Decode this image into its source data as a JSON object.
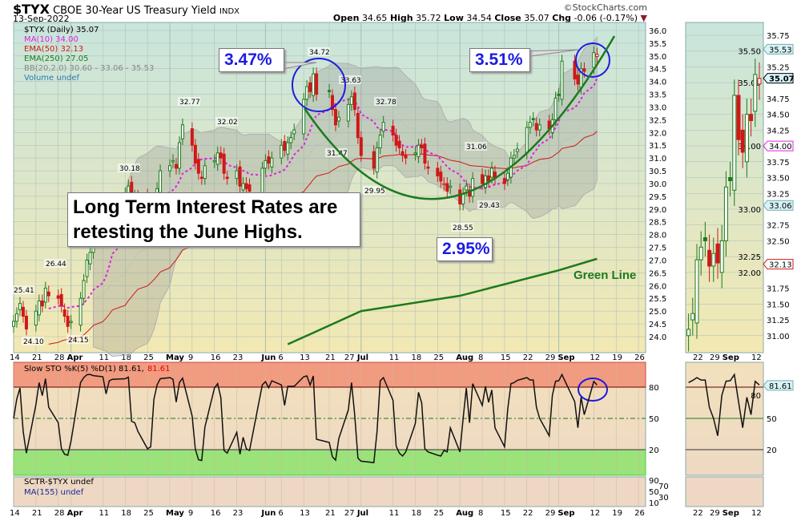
{
  "header": {
    "symbol": "$TYX",
    "name": "CBOE 30-Year US Treasury Yield",
    "exchange": "INDX",
    "date": "13-Sep-2022",
    "brand": "©StockCharts.com",
    "open_label": "Open",
    "open": "34.65",
    "high_label": "High",
    "high": "35.72",
    "low_label": "Low",
    "low": "34.54",
    "close_label": "Close",
    "close": "35.07",
    "chg_label": "Chg",
    "chg": "-0.06 (-0.17%)"
  },
  "legend": {
    "price": "$TYX (Daily) 35.07",
    "ma10": "MA(10) 34.00",
    "ema50": "EMA(50) 32.13",
    "ema250": "EMA(250) 27.05",
    "bb": "BB(20,2.0) 30.60 - 33.06 - 35.53",
    "volume": "Volume undef",
    "sto": "Slow STO %K(5) %D(1) 81.61,",
    "sto_d": "81.61",
    "sctr": "SCTR-$TYX undef",
    "ma155": "MA(155) undef"
  },
  "annotations": {
    "pct_june": "3.47%",
    "pct_sep": "3.51%",
    "pct_aug": "2.95%",
    "text": "Long Term Interest Rates are retesting the June Highs.",
    "green_line": "Green Line"
  },
  "colors": {
    "up": "#1d7a1d",
    "down": "#d01818",
    "ma10": "#e020e0",
    "ema50": "#d01818",
    "ema250": "#1d7a1d",
    "circle": "#1c1ce0",
    "overbought": "#f19b80",
    "oversold": "#9be27a",
    "bb": "#a0a0a0"
  },
  "chart_data": {
    "type": "candlestick",
    "price_axis": {
      "ylim": [
        23.7,
        36.2
      ],
      "ticks": [
        "24.0",
        "24.5",
        "25.0",
        "25.5",
        "26.0",
        "26.5",
        "27.0",
        "27.5",
        "28.0",
        "28.5",
        "29.0",
        "29.5",
        "30.0",
        "30.5",
        "31.0",
        "31.5",
        "32.0",
        "32.5",
        "33.0",
        "33.5",
        "34.0",
        "34.5",
        "35.0",
        "35.5",
        "36.0"
      ]
    },
    "date_ticks": [
      [
        "2022-03-14",
        "14"
      ],
      [
        "2022-03-21",
        "21"
      ],
      [
        "2022-03-28",
        "28"
      ],
      [
        "2022-04-01",
        "Apr"
      ],
      [
        "2022-04-11",
        "11"
      ],
      [
        "2022-04-18",
        "18"
      ],
      [
        "2022-04-25",
        "25"
      ],
      [
        "2022-05-02",
        "May"
      ],
      [
        "2022-05-09",
        "9"
      ],
      [
        "2022-05-16",
        "16"
      ],
      [
        "2022-05-23",
        "23"
      ],
      [
        "2022-06-01",
        "Jun"
      ],
      [
        "2022-06-06",
        "6"
      ],
      [
        "2022-06-13",
        "13"
      ],
      [
        "2022-06-21",
        "21"
      ],
      [
        "2022-06-27",
        "27"
      ],
      [
        "2022-07-01",
        "Jul"
      ],
      [
        "2022-07-11",
        "11"
      ],
      [
        "2022-07-18",
        "18"
      ],
      [
        "2022-07-25",
        "25"
      ],
      [
        "2022-08-01",
        "Aug"
      ],
      [
        "2022-08-08",
        "8"
      ],
      [
        "2022-08-15",
        "15"
      ],
      [
        "2022-08-22",
        "22"
      ],
      [
        "2022-08-29",
        "29"
      ],
      [
        "2022-09-01",
        "Sep"
      ],
      [
        "2022-09-12",
        "12"
      ],
      [
        "2022-09-19",
        "19"
      ],
      [
        "2022-09-26",
        "26"
      ]
    ],
    "closes": [
      [
        "03-14",
        24.6
      ],
      [
        "03-15",
        24.9
      ],
      [
        "03-16",
        25.3
      ],
      [
        "03-17",
        24.8
      ],
      [
        "03-18",
        24.3
      ],
      [
        "03-21",
        25.0
      ],
      [
        "03-22",
        25.4
      ],
      [
        "03-23",
        25.2
      ],
      [
        "03-24",
        25.9
      ],
      [
        "03-25",
        25.6
      ],
      [
        "03-28",
        25.5
      ],
      [
        "03-29",
        25.2
      ],
      [
        "03-30",
        24.8
      ],
      [
        "03-31",
        24.4
      ],
      [
        "04-01",
        24.6
      ],
      [
        "04-04",
        25.5
      ],
      [
        "04-05",
        26.2
      ],
      [
        "04-06",
        27.0
      ],
      [
        "04-07",
        27.3
      ],
      [
        "04-08",
        27.8
      ],
      [
        "04-11",
        28.2
      ],
      [
        "04-12",
        28.0
      ],
      [
        "04-13",
        28.6
      ],
      [
        "04-14",
        29.3
      ],
      [
        "04-18",
        29.6
      ],
      [
        "04-19",
        29.9
      ],
      [
        "04-20",
        29.2
      ],
      [
        "04-21",
        29.5
      ],
      [
        "04-22",
        29.4
      ],
      [
        "04-25",
        29.2
      ],
      [
        "04-26",
        28.9
      ],
      [
        "04-27",
        29.4
      ],
      [
        "04-28",
        29.8
      ],
      [
        "04-29",
        30.5
      ],
      [
        "05-02",
        30.7
      ],
      [
        "05-03",
        30.9
      ],
      [
        "05-04",
        30.6
      ],
      [
        "05-05",
        31.6
      ],
      [
        "05-06",
        32.3
      ],
      [
        "05-09",
        31.5
      ],
      [
        "05-10",
        30.8
      ],
      [
        "05-11",
        30.4
      ],
      [
        "05-12",
        30.2
      ],
      [
        "05-13",
        30.7
      ],
      [
        "05-16",
        30.9
      ],
      [
        "05-17",
        31.2
      ],
      [
        "05-18",
        31.0
      ],
      [
        "05-19",
        30.4
      ],
      [
        "05-20",
        30.2
      ],
      [
        "05-23",
        30.5
      ],
      [
        "05-24",
        29.9
      ],
      [
        "05-25",
        30.0
      ],
      [
        "05-26",
        29.8
      ],
      [
        "05-27",
        29.7
      ],
      [
        "05-31",
        30.6
      ],
      [
        "06-01",
        30.9
      ],
      [
        "06-02",
        30.8
      ],
      [
        "06-03",
        31.0
      ],
      [
        "06-06",
        31.5
      ],
      [
        "06-07",
        31.3
      ],
      [
        "06-08",
        31.6
      ],
      [
        "06-09",
        31.8
      ],
      [
        "06-10",
        32.1
      ],
      [
        "06-13",
        33.3
      ],
      [
        "06-14",
        33.8
      ],
      [
        "06-15",
        33.6
      ],
      [
        "06-16",
        34.3
      ],
      [
        "06-17",
        33.5
      ],
      [
        "06-21",
        33.6
      ],
      [
        "06-22",
        32.9
      ],
      [
        "06-23",
        32.3
      ],
      [
        "06-24",
        32.6
      ],
      [
        "06-27",
        33.1
      ],
      [
        "06-28",
        33.4
      ],
      [
        "06-29",
        32.9
      ],
      [
        "06-30",
        31.8
      ],
      [
        "07-01",
        31.1
      ],
      [
        "07-05",
        30.6
      ],
      [
        "07-06",
        31.4
      ],
      [
        "07-07",
        31.9
      ],
      [
        "07-08",
        32.4
      ],
      [
        "07-11",
        31.9
      ],
      [
        "07-12",
        31.5
      ],
      [
        "07-13",
        31.4
      ],
      [
        "07-14",
        31.1
      ],
      [
        "07-15",
        31.0
      ],
      [
        "07-18",
        31.2
      ],
      [
        "07-19",
        31.5
      ],
      [
        "07-20",
        31.4
      ],
      [
        "07-21",
        30.8
      ],
      [
        "07-22",
        30.6
      ],
      [
        "07-25",
        30.3
      ],
      [
        "07-26",
        30.1
      ],
      [
        "07-27",
        30.0
      ],
      [
        "07-28",
        29.7
      ],
      [
        "07-29",
        29.9
      ],
      [
        "08-01",
        29.2
      ],
      [
        "08-02",
        29.6
      ],
      [
        "08-03",
        29.9
      ],
      [
        "08-04",
        29.5
      ],
      [
        "08-05",
        30.2
      ],
      [
        "08-08",
        30.0
      ],
      [
        "08-09",
        30.3
      ],
      [
        "08-10",
        30.1
      ],
      [
        "08-11",
        30.6
      ],
      [
        "08-12",
        30.2
      ],
      [
        "08-15",
        30.0
      ],
      [
        "08-16",
        30.4
      ],
      [
        "08-17",
        31.0
      ],
      [
        "08-18",
        31.1
      ],
      [
        "08-19",
        31.35
      ],
      [
        "08-22",
        32.2
      ],
      [
        "08-23",
        32.4
      ],
      [
        "08-24",
        32.5
      ],
      [
        "08-25",
        32.1
      ],
      [
        "08-26",
        32.3
      ],
      [
        "08-29",
        32.15
      ],
      [
        "08-30",
        32.5
      ],
      [
        "08-31",
        33.35
      ],
      [
        "09-01",
        33.45
      ],
      [
        "09-02",
        34.8
      ],
      [
        "09-06",
        34.1
      ],
      [
        "09-07",
        33.9
      ],
      [
        "09-08",
        34.5
      ],
      [
        "09-09",
        34.4
      ],
      [
        "09-12",
        35.13
      ],
      [
        "09-13",
        35.07
      ]
    ],
    "ema250": [
      [
        "06-08",
        23.7
      ],
      [
        "07-01",
        25.0
      ],
      [
        "08-01",
        25.6
      ],
      [
        "09-01",
        26.6
      ],
      [
        "09-13",
        27.05
      ]
    ],
    "sto_levels": {
      "overbought": 80,
      "mid": 50,
      "oversold": 20
    },
    "sto_ticks": [
      "80",
      "50",
      "20"
    ],
    "sctr_ticks": [
      "90",
      "70",
      "50",
      "30",
      "10"
    ],
    "last_markers": {
      "bb_upper": "35.53",
      "close": "35.07",
      "ma10": "34.00",
      "bb_mid": "33.06",
      "ema50": "32.13",
      "sto": "81.61"
    },
    "price_labels": [
      "34.72",
      "33.63",
      "32.77",
      "32.02",
      "30.18",
      "31.47",
      "32.78",
      "29.95",
      "31.06",
      "29.43",
      "28.55",
      "26.44",
      "25.41",
      "24.10",
      "24.15"
    ],
    "mini_axis": {
      "ylim": [
        30.8,
        35.85
      ],
      "ticks": [
        "31.00",
        "31.25",
        "31.50",
        "31.75",
        "32.00",
        "32.25",
        "32.50",
        "32.75",
        "33.00",
        "33.25",
        "33.50",
        "33.75",
        "34.00",
        "34.25",
        "34.50",
        "34.75",
        "35.00",
        "35.25",
        "35.50",
        "35.75"
      ],
      "date_ticks": [
        "22",
        "29",
        "Sep",
        "12"
      ]
    }
  }
}
